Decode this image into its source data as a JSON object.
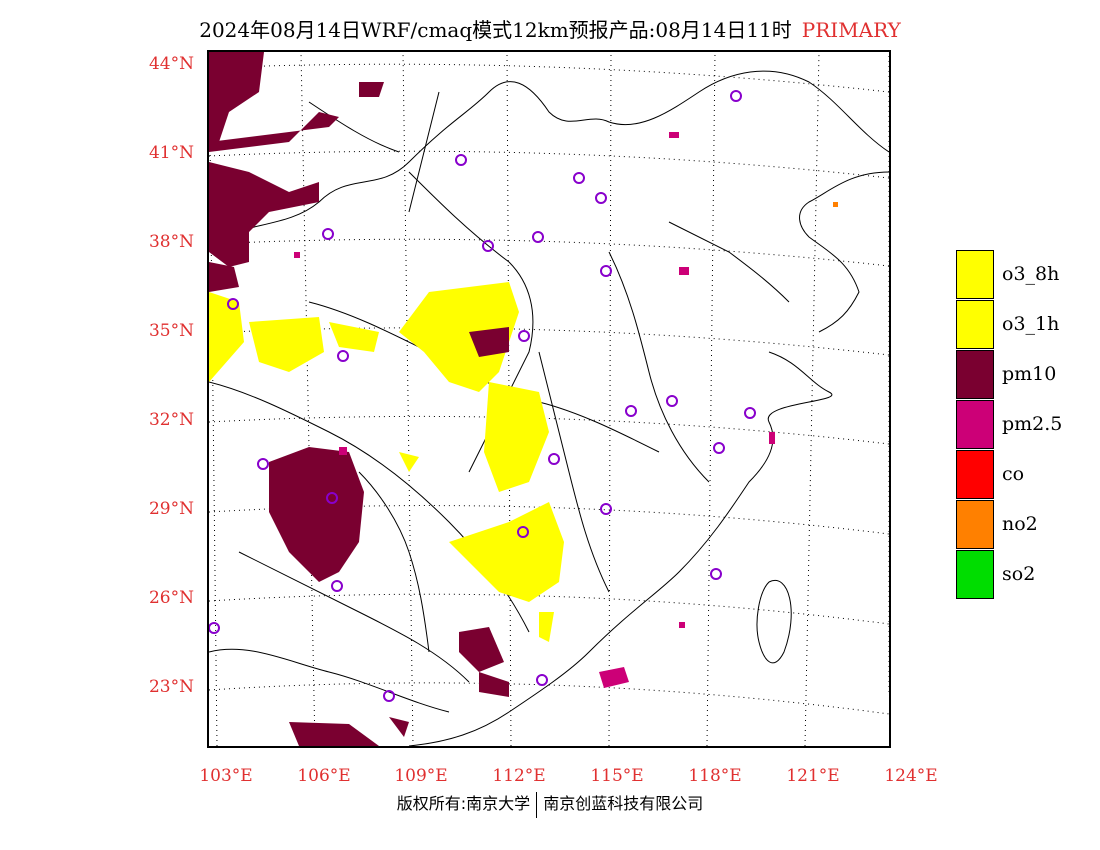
{
  "header": {
    "title": "2024年08月14日WRF/cmaq模式12km预报产品:08月14日11时",
    "tag": "PRIMARY"
  },
  "axes": {
    "lat_labels": [
      "44°N",
      "41°N",
      "38°N",
      "35°N",
      "32°N",
      "29°N",
      "26°N",
      "23°N"
    ],
    "lon_labels": [
      "103°E",
      "106°E",
      "109°E",
      "112°E",
      "115°E",
      "118°E",
      "121°E",
      "124°E"
    ]
  },
  "legend": {
    "items": [
      {
        "label": "o3_8h",
        "color": "#ffff00"
      },
      {
        "label": "o3_1h",
        "color": "#ffff00"
      },
      {
        "label": "pm10",
        "color": "#7a0030"
      },
      {
        "label": "pm2.5",
        "color": "#cc0077"
      },
      {
        "label": "co",
        "color": "#ff0000"
      },
      {
        "label": "no2",
        "color": "#ff8000"
      },
      {
        "label": "so2",
        "color": "#00dd00"
      }
    ]
  },
  "footer": {
    "left": "版权所有:南京大学",
    "right": "南京创蓝科技有限公司"
  },
  "colors": {
    "accent": "#e03030",
    "o3": "#ffff00",
    "pm10": "#7a0030",
    "pm25": "#cc0077",
    "station_circle": "#8800cc"
  }
}
